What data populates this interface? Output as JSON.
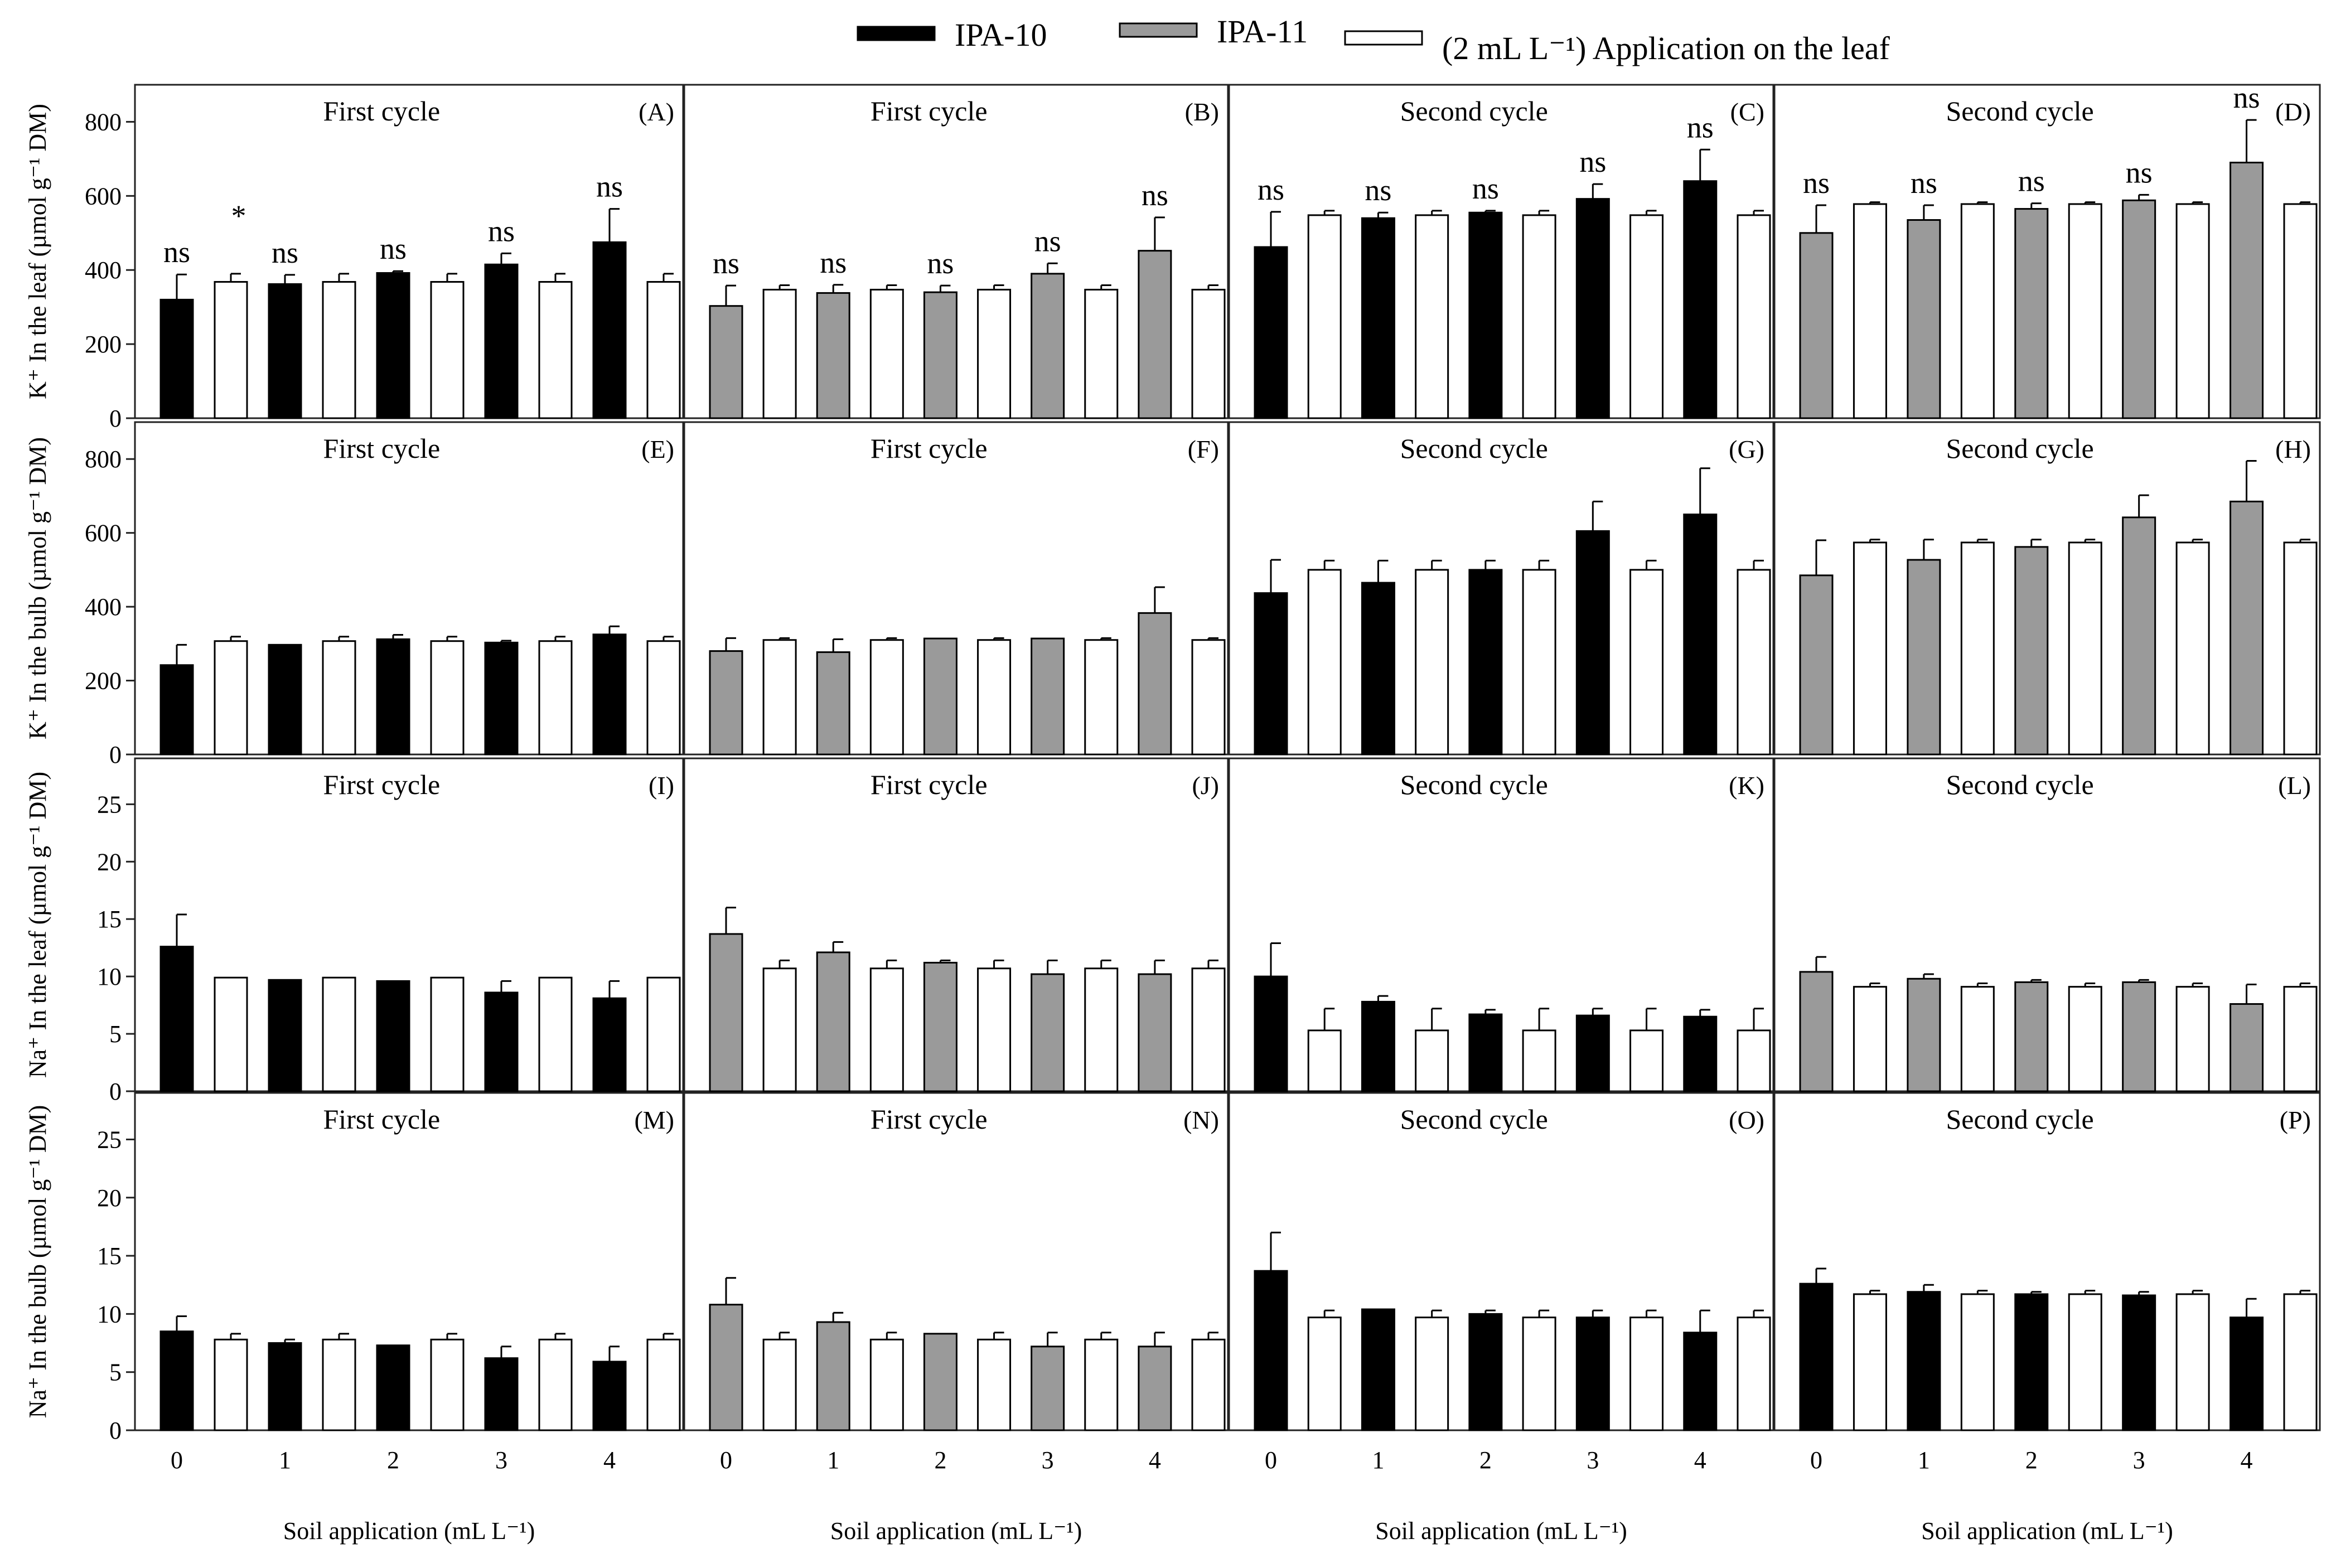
{
  "legend": {
    "ipa10": "IPA-10",
    "ipa11": "IPA-11",
    "leaf_application": "(2 mL L⁻¹) Application on the leaf"
  },
  "x_axis_label": "Soil application (mL L⁻¹)",
  "colors": {
    "ipa10": "#000000",
    "ipa11": "#9a9a9a",
    "leaf": "#ffffff"
  },
  "row_labels": [
    "K⁺ In the leaf (µmol g⁻¹ DM)",
    "K⁺ In the bulb (µmol g⁻¹ DM)",
    "Na⁺ In the leaf (µmol g⁻¹ DM)",
    "Na⁺ In the bulb (µmol g⁻¹ DM)"
  ],
  "chart_data": [
    {
      "type": "bar",
      "letter": "(A)",
      "title": "First cycle",
      "row": 0,
      "col": 0,
      "series": "ipa10",
      "ylim": [
        0,
        900
      ],
      "yticks": [
        0,
        200,
        400,
        600,
        800
      ],
      "categories": [
        "0",
        "1",
        "2",
        "3",
        "4"
      ],
      "soil_values": [
        320,
        362,
        392,
        415,
        475
      ],
      "soil_errors": [
        68,
        25,
        5,
        30,
        90
      ],
      "leaf_value": 368,
      "leaf_error": 22,
      "significance": [
        "ns",
        "ns",
        "ns",
        "ns",
        "ns"
      ],
      "leaf_significance": "*"
    },
    {
      "type": "bar",
      "letter": "(B)",
      "title": "First cycle",
      "row": 0,
      "col": 1,
      "series": "ipa11",
      "ylim": [
        0,
        900
      ],
      "yticks": [
        0,
        200,
        400,
        600,
        800
      ],
      "categories": [
        "0",
        "1",
        "2",
        "3",
        "4"
      ],
      "soil_values": [
        303,
        338,
        340,
        390,
        452
      ],
      "soil_errors": [
        55,
        22,
        18,
        28,
        90
      ],
      "leaf_value": 347,
      "leaf_error": 12,
      "significance": [
        "ns",
        "ns",
        "ns",
        "ns",
        "ns"
      ]
    },
    {
      "type": "bar",
      "letter": "(C)",
      "title": "Second cycle",
      "row": 0,
      "col": 2,
      "series": "ipa10",
      "ylim": [
        0,
        900
      ],
      "yticks": [
        0,
        200,
        400,
        600,
        800
      ],
      "categories": [
        "0",
        "1",
        "2",
        "3",
        "4"
      ],
      "soil_values": [
        462,
        540,
        555,
        592,
        640
      ],
      "soil_errors": [
        95,
        15,
        5,
        40,
        85
      ],
      "leaf_value": 548,
      "leaf_error": 12,
      "significance": [
        "ns",
        "ns",
        "ns",
        "ns",
        "ns"
      ]
    },
    {
      "type": "bar",
      "letter": "(D)",
      "title": "Second cycle",
      "row": 0,
      "col": 3,
      "series": "ipa11",
      "ylim": [
        0,
        900
      ],
      "yticks": [
        0,
        200,
        400,
        600,
        800
      ],
      "categories": [
        "0",
        "1",
        "2",
        "3",
        "4"
      ],
      "soil_values": [
        500,
        535,
        565,
        588,
        690
      ],
      "soil_errors": [
        75,
        40,
        15,
        15,
        115
      ],
      "leaf_value": 578,
      "leaf_error": 5,
      "significance": [
        "ns",
        "ns",
        "ns",
        "ns",
        "ns"
      ]
    },
    {
      "type": "bar",
      "letter": "(E)",
      "title": "First cycle",
      "row": 1,
      "col": 0,
      "series": "ipa10",
      "ylim": [
        0,
        900
      ],
      "yticks": [
        0,
        200,
        400,
        600,
        800
      ],
      "categories": [
        "0",
        "1",
        "2",
        "3",
        "4"
      ],
      "soil_values": [
        242,
        297,
        312,
        303,
        325
      ],
      "soil_errors": [
        55,
        0,
        12,
        5,
        22
      ],
      "leaf_value": 307,
      "leaf_error": 12
    },
    {
      "type": "bar",
      "letter": "(F)",
      "title": "First cycle",
      "row": 1,
      "col": 1,
      "series": "ipa11",
      "ylim": [
        0,
        900
      ],
      "yticks": [
        0,
        200,
        400,
        600,
        800
      ],
      "categories": [
        "0",
        "1",
        "2",
        "3",
        "4"
      ],
      "soil_values": [
        280,
        277,
        314,
        314,
        383
      ],
      "soil_errors": [
        35,
        35,
        0,
        0,
        70
      ],
      "leaf_value": 310,
      "leaf_error": 5
    },
    {
      "type": "bar",
      "letter": "(G)",
      "title": "Second cycle",
      "row": 1,
      "col": 2,
      "series": "ipa10",
      "ylim": [
        0,
        900
      ],
      "yticks": [
        0,
        200,
        400,
        600,
        800
      ],
      "categories": [
        "0",
        "1",
        "2",
        "3",
        "4"
      ],
      "soil_values": [
        437,
        465,
        500,
        605,
        650
      ],
      "soil_errors": [
        90,
        60,
        25,
        80,
        125
      ],
      "leaf_value": 500,
      "leaf_error": 25
    },
    {
      "type": "bar",
      "letter": "(H)",
      "title": "Second cycle",
      "row": 1,
      "col": 3,
      "series": "ipa11",
      "ylim": [
        0,
        900
      ],
      "yticks": [
        0,
        200,
        400,
        600,
        800
      ],
      "categories": [
        "0",
        "1",
        "2",
        "3",
        "4"
      ],
      "soil_values": [
        485,
        527,
        562,
        642,
        685
      ],
      "soil_errors": [
        95,
        55,
        20,
        60,
        110
      ],
      "leaf_value": 574,
      "leaf_error": 8
    },
    {
      "type": "bar",
      "letter": "(I)",
      "title": "First cycle",
      "row": 2,
      "col": 0,
      "series": "ipa10",
      "ylim": [
        0,
        29
      ],
      "yticks": [
        0,
        5,
        10,
        15,
        20,
        25
      ],
      "categories": [
        "0",
        "1",
        "2",
        "3",
        "4"
      ],
      "soil_values": [
        12.6,
        9.7,
        9.6,
        8.6,
        8.1
      ],
      "soil_errors": [
        2.8,
        0,
        0,
        1.0,
        1.5
      ],
      "leaf_value": 9.9,
      "leaf_error": 0
    },
    {
      "type": "bar",
      "letter": "(J)",
      "title": "First cycle",
      "row": 2,
      "col": 1,
      "series": "ipa11",
      "ylim": [
        0,
        29
      ],
      "yticks": [
        0,
        5,
        10,
        15,
        20,
        25
      ],
      "categories": [
        "0",
        "1",
        "2",
        "3",
        "4"
      ],
      "soil_values": [
        13.7,
        12.1,
        11.2,
        10.2,
        10.2
      ],
      "soil_errors": [
        2.3,
        0.9,
        0.2,
        1.2,
        1.2
      ],
      "leaf_value": 10.7,
      "leaf_error": 0.7
    },
    {
      "type": "bar",
      "letter": "(K)",
      "title": "Second cycle",
      "row": 2,
      "col": 2,
      "series": "ipa10",
      "ylim": [
        0,
        29
      ],
      "yticks": [
        0,
        5,
        10,
        15,
        20,
        25
      ],
      "categories": [
        "0",
        "1",
        "2",
        "3",
        "4"
      ],
      "soil_values": [
        10.0,
        7.8,
        6.7,
        6.6,
        6.5
      ],
      "soil_errors": [
        2.9,
        0.5,
        0.4,
        0.6,
        0.6
      ],
      "leaf_value": 5.3,
      "leaf_error": 1.9
    },
    {
      "type": "bar",
      "letter": "(L)",
      "title": "Second cycle",
      "row": 2,
      "col": 3,
      "series": "ipa11",
      "ylim": [
        0,
        29
      ],
      "yticks": [
        0,
        5,
        10,
        15,
        20,
        25
      ],
      "categories": [
        "0",
        "1",
        "2",
        "3",
        "4"
      ],
      "soil_values": [
        10.4,
        9.8,
        9.5,
        9.5,
        7.6
      ],
      "soil_errors": [
        1.3,
        0.4,
        0.2,
        0.2,
        1.7
      ],
      "leaf_value": 9.1,
      "leaf_error": 0.3
    },
    {
      "type": "bar",
      "letter": "(M)",
      "title": "First cycle",
      "row": 3,
      "col": 0,
      "series": "ipa10",
      "ylim": [
        0,
        29
      ],
      "yticks": [
        0,
        5,
        10,
        15,
        20,
        25
      ],
      "categories": [
        "0",
        "1",
        "2",
        "3",
        "4"
      ],
      "soil_values": [
        8.5,
        7.5,
        7.3,
        6.2,
        5.9
      ],
      "soil_errors": [
        1.3,
        0.3,
        0,
        1.0,
        1.3
      ],
      "leaf_value": 7.8,
      "leaf_error": 0.5
    },
    {
      "type": "bar",
      "letter": "(N)",
      "title": "First cycle",
      "row": 3,
      "col": 1,
      "series": "ipa11",
      "ylim": [
        0,
        29
      ],
      "yticks": [
        0,
        5,
        10,
        15,
        20,
        25
      ],
      "categories": [
        "0",
        "1",
        "2",
        "3",
        "4"
      ],
      "soil_values": [
        10.8,
        9.3,
        8.3,
        7.2,
        7.2
      ],
      "soil_errors": [
        2.3,
        0.8,
        0,
        1.2,
        1.2
      ],
      "leaf_value": 7.8,
      "leaf_error": 0.6
    },
    {
      "type": "bar",
      "letter": "(O)",
      "title": "Second cycle",
      "row": 3,
      "col": 2,
      "series": "ipa10",
      "ylim": [
        0,
        29
      ],
      "yticks": [
        0,
        5,
        10,
        15,
        20,
        25
      ],
      "categories": [
        "0",
        "1",
        "2",
        "3",
        "4"
      ],
      "soil_values": [
        13.7,
        10.4,
        10.0,
        9.7,
        8.4
      ],
      "soil_errors": [
        3.3,
        0,
        0.3,
        0.6,
        1.9
      ],
      "leaf_value": 9.7,
      "leaf_error": 0.6
    },
    {
      "type": "bar",
      "letter": "(P)",
      "title": "Second cycle",
      "row": 3,
      "col": 3,
      "series": "ipa10",
      "ylim": [
        0,
        29
      ],
      "yticks": [
        0,
        5,
        10,
        15,
        20,
        25
      ],
      "categories": [
        "0",
        "1",
        "2",
        "3",
        "4"
      ],
      "soil_values": [
        12.6,
        11.9,
        11.7,
        11.6,
        9.7
      ],
      "soil_errors": [
        1.3,
        0.6,
        0.2,
        0.3,
        1.6
      ],
      "leaf_value": 11.7,
      "leaf_error": 0.3
    }
  ]
}
